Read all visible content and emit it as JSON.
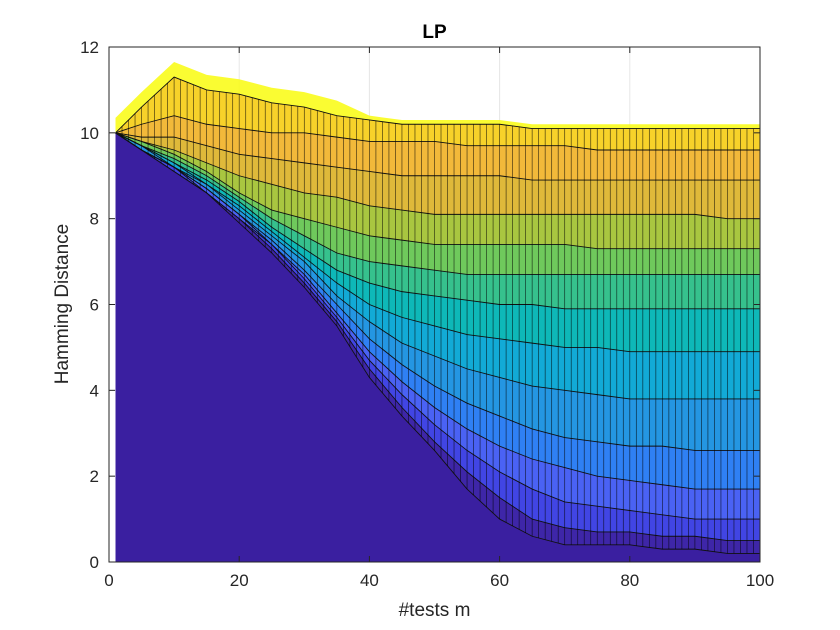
{
  "chart_data": {
    "type": "area",
    "title": "LP",
    "xlabel": "#tests m",
    "ylabel": "Hamming Distance",
    "xlim": [
      0,
      100
    ],
    "ylim": [
      0,
      12
    ],
    "xticks": [
      0,
      20,
      40,
      60,
      80,
      100
    ],
    "yticks": [
      0,
      2,
      4,
      6,
      8,
      10,
      12
    ],
    "grid": true,
    "x": [
      1,
      5,
      10,
      15,
      20,
      25,
      30,
      35,
      40,
      45,
      50,
      55,
      60,
      65,
      70,
      75,
      80,
      85,
      90,
      95,
      100
    ],
    "series": [
      {
        "values": [
          10.0,
          10.6,
          11.3,
          11.0,
          10.9,
          10.7,
          10.6,
          10.4,
          10.3,
          10.2,
          10.2,
          10.2,
          10.2,
          10.1,
          10.1,
          10.1,
          10.1,
          10.1,
          10.1,
          10.1,
          10.1
        ]
      },
      {
        "values": [
          10.0,
          10.2,
          10.4,
          10.2,
          10.1,
          10.0,
          10.0,
          9.9,
          9.8,
          9.8,
          9.8,
          9.7,
          9.7,
          9.7,
          9.7,
          9.6,
          9.6,
          9.6,
          9.6,
          9.6,
          9.6
        ]
      },
      {
        "values": [
          10.0,
          9.9,
          9.9,
          9.7,
          9.5,
          9.4,
          9.3,
          9.2,
          9.1,
          9.0,
          9.0,
          9.0,
          9.0,
          8.9,
          8.9,
          8.9,
          8.9,
          8.9,
          8.9,
          8.9,
          8.9
        ]
      },
      {
        "values": [
          10.0,
          9.8,
          9.6,
          9.3,
          9.0,
          8.8,
          8.6,
          8.5,
          8.3,
          8.2,
          8.1,
          8.1,
          8.1,
          8.1,
          8.1,
          8.1,
          8.1,
          8.1,
          8.1,
          8.0,
          8.0
        ]
      },
      {
        "values": [
          10.0,
          9.8,
          9.5,
          9.1,
          8.6,
          8.2,
          8.0,
          7.8,
          7.6,
          7.5,
          7.4,
          7.4,
          7.4,
          7.4,
          7.4,
          7.3,
          7.3,
          7.3,
          7.3,
          7.3,
          7.3
        ]
      },
      {
        "values": [
          10.0,
          9.7,
          9.4,
          9.0,
          8.5,
          8.0,
          7.6,
          7.2,
          7.0,
          6.9,
          6.8,
          6.7,
          6.7,
          6.7,
          6.7,
          6.7,
          6.7,
          6.7,
          6.7,
          6.7,
          6.7
        ]
      },
      {
        "values": [
          10.0,
          9.7,
          9.3,
          8.9,
          8.4,
          7.8,
          7.3,
          6.8,
          6.5,
          6.3,
          6.2,
          6.1,
          6.0,
          6.0,
          5.9,
          5.9,
          5.9,
          5.9,
          5.9,
          5.9,
          5.9
        ]
      },
      {
        "values": [
          10.0,
          9.7,
          9.3,
          8.8,
          8.3,
          7.7,
          7.1,
          6.5,
          6.0,
          5.7,
          5.5,
          5.3,
          5.2,
          5.1,
          5.0,
          5.0,
          4.9,
          4.9,
          4.9,
          4.9,
          4.9
        ]
      },
      {
        "values": [
          10.0,
          9.7,
          9.2,
          8.8,
          8.2,
          7.6,
          7.0,
          6.2,
          5.6,
          5.1,
          4.8,
          4.5,
          4.3,
          4.1,
          4.0,
          3.9,
          3.8,
          3.8,
          3.8,
          3.8,
          3.8
        ]
      },
      {
        "values": [
          10.0,
          9.6,
          9.2,
          8.7,
          8.1,
          7.5,
          6.8,
          6.0,
          5.2,
          4.6,
          4.1,
          3.7,
          3.4,
          3.1,
          2.9,
          2.8,
          2.7,
          2.7,
          2.6,
          2.6,
          2.6
        ]
      },
      {
        "values": [
          10.0,
          9.6,
          9.2,
          8.7,
          8.1,
          7.4,
          6.7,
          5.8,
          4.9,
          4.2,
          3.6,
          3.1,
          2.7,
          2.4,
          2.2,
          2.0,
          1.9,
          1.8,
          1.7,
          1.7,
          1.7
        ]
      },
      {
        "values": [
          10.0,
          9.6,
          9.2,
          8.6,
          8.0,
          7.4,
          6.6,
          5.7,
          4.7,
          3.9,
          3.2,
          2.6,
          2.1,
          1.7,
          1.4,
          1.3,
          1.2,
          1.1,
          1.0,
          1.0,
          1.0
        ]
      },
      {
        "values": [
          10.0,
          9.6,
          9.1,
          8.6,
          8.0,
          7.3,
          6.5,
          5.6,
          4.5,
          3.6,
          2.8,
          2.1,
          1.5,
          1.0,
          0.8,
          0.7,
          0.7,
          0.6,
          0.6,
          0.5,
          0.5
        ]
      },
      {
        "values": [
          10.0,
          9.6,
          9.1,
          8.6,
          7.9,
          7.2,
          6.4,
          5.5,
          4.3,
          3.4,
          2.6,
          1.7,
          1.0,
          0.6,
          0.4,
          0.4,
          0.4,
          0.3,
          0.3,
          0.2,
          0.2
        ]
      }
    ],
    "colormap": [
      "#3e26a8",
      "#4145e4",
      "#4a62f4",
      "#2f80f4",
      "#2496e2",
      "#12aad6",
      "#0eb8b8",
      "#36c18d",
      "#6fc95c",
      "#a9c640",
      "#dfb93a",
      "#f2b93a",
      "#f7d22a",
      "#f8e61f"
    ],
    "colormap_lowest": "#3a1fa0",
    "colormap_highest": "#f9fb0e"
  }
}
